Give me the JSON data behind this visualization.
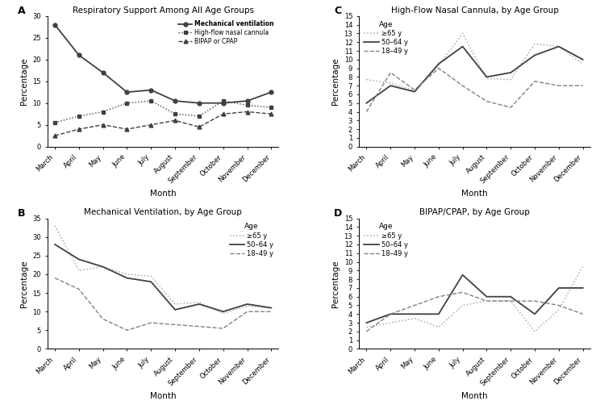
{
  "months": [
    "March",
    "April",
    "May",
    "June",
    "July",
    "August",
    "September",
    "October",
    "November",
    "December"
  ],
  "panel_A": {
    "title": "Respiratory Support Among All Age Groups",
    "mech_vent": [
      28,
      21,
      17,
      12.5,
      13,
      10.5,
      10,
      10,
      10.5,
      12.5
    ],
    "high_flow": [
      5.5,
      7.0,
      8,
      10,
      10.5,
      7.5,
      7,
      10.5,
      9.5,
      9
    ],
    "bipap_cpap": [
      2.5,
      4,
      5,
      4,
      5,
      6,
      4.5,
      7.5,
      8,
      7.5
    ],
    "ylim": [
      0,
      30
    ],
    "yticks": [
      0,
      5,
      10,
      15,
      20,
      25,
      30
    ]
  },
  "panel_B": {
    "title": "Mechanical Ventilation, by Age Group",
    "ge65": [
      33,
      21,
      22,
      20,
      19.5,
      12,
      12.5,
      9.5,
      11.5,
      11
    ],
    "age50_64": [
      28,
      24,
      22,
      19,
      18,
      10.5,
      12,
      10,
      12,
      11
    ],
    "age18_49": [
      19,
      16,
      8,
      5,
      7,
      6.5,
      6,
      5.5,
      10,
      10
    ],
    "ylim": [
      0,
      35
    ],
    "yticks": [
      0,
      5,
      10,
      15,
      20,
      25,
      30,
      35
    ]
  },
  "panel_C": {
    "title": "High-Flow Nasal Cannula, by Age Group",
    "ge65": [
      7.7,
      7.3,
      6.4,
      9.3,
      13,
      7.8,
      7.7,
      11.8,
      11.5,
      9.5
    ],
    "age50_64": [
      5,
      7,
      6.3,
      9.5,
      11.5,
      8,
      8.5,
      10.5,
      11.5,
      10
    ],
    "age18_49": [
      4,
      8.5,
      6.5,
      9,
      7,
      5.2,
      4.5,
      7.5,
      7,
      7
    ],
    "ylim": [
      0,
      15
    ],
    "yticks": [
      0,
      1,
      2,
      3,
      4,
      5,
      6,
      7,
      8,
      9,
      10,
      11,
      12,
      13,
      14,
      15
    ]
  },
  "panel_D": {
    "title": "BIPAP/CPAP, by Age Group",
    "ge65": [
      2.5,
      3,
      3.5,
      2.5,
      5,
      5.5,
      5.5,
      2,
      4.5,
      9.5
    ],
    "age50_64": [
      3,
      4,
      4,
      4,
      8.5,
      6,
      6,
      4,
      7,
      7
    ],
    "age18_49": [
      2,
      4,
      5,
      6,
      6.5,
      5.5,
      5.5,
      5.5,
      5,
      4
    ],
    "ylim": [
      0,
      15
    ],
    "yticks": [
      0,
      1,
      2,
      3,
      4,
      5,
      6,
      7,
      8,
      9,
      10,
      11,
      12,
      13,
      14,
      15
    ]
  },
  "color_dark": "#404040",
  "color_mid": "#808080",
  "color_light": "#aaaaaa",
  "ylabel": "Percentage",
  "xlabel": "Month",
  "legend_age_title": "Age",
  "legend_age_labels": [
    "≥65 y",
    "50–64 y",
    "18–49 y"
  ]
}
